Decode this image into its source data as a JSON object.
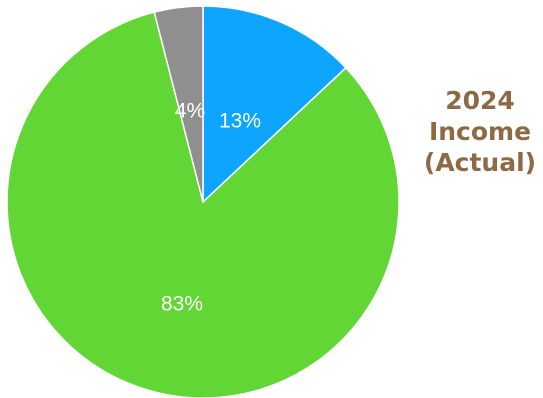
{
  "chart_data": {
    "type": "pie",
    "title_lines": [
      "2024",
      "Income",
      "(Actual)"
    ],
    "slices": [
      {
        "value": 13,
        "label": "13%",
        "color": "#0ea5ff"
      },
      {
        "value": 83,
        "label": "83%",
        "color": "#62d634"
      },
      {
        "value": 4,
        "label": "4%",
        "color": "#8f8f8f"
      }
    ],
    "start_angle_deg": -90,
    "direction": "clockwise"
  }
}
